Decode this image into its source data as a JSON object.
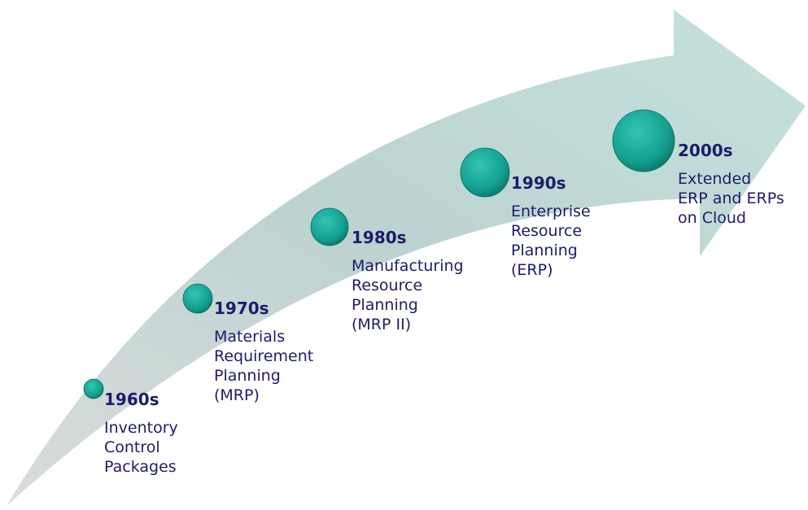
{
  "milestones": [
    {
      "decade": "1960s",
      "description": [
        "Inventory",
        "Control",
        "Packages"
      ]
    },
    {
      "decade": "1970s",
      "description": [
        "Materials",
        "Requirement",
        "Planning",
        "(MRP)"
      ]
    },
    {
      "decade": "1980s",
      "description": [
        "Manufacturing",
        "Resource",
        "Planning",
        "(MRP II)"
      ]
    },
    {
      "decade": "1990s",
      "description": [
        "Enterprise",
        "Resource",
        "Planning",
        "(ERP)"
      ]
    },
    {
      "decade": "2000s",
      "description": [
        "Extended",
        "ERP and ERPs",
        "on Cloud"
      ]
    }
  ]
}
